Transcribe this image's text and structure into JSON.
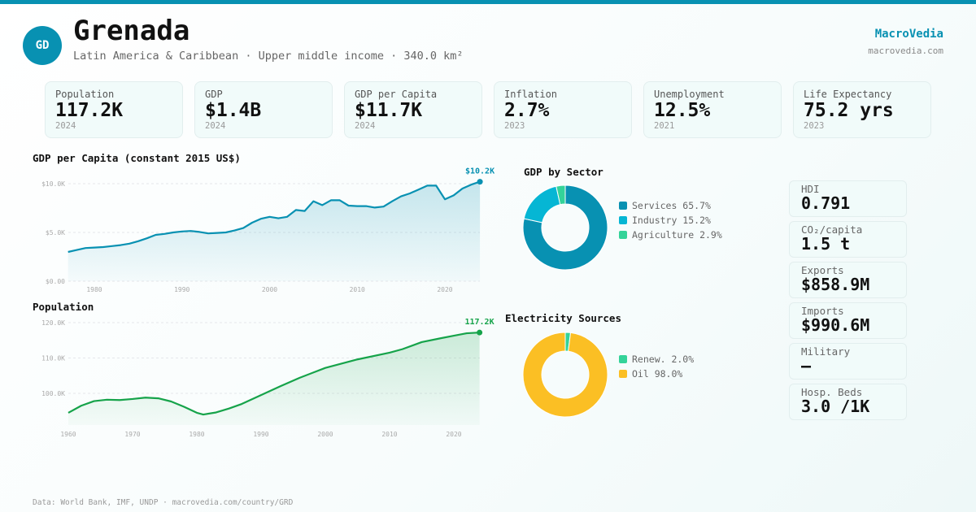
{
  "header": {
    "initials": "GD",
    "title": "Grenada",
    "subtitle": "Latin America & Caribbean · Upper middle income · 340.0 km²",
    "brand": "MacroVedia",
    "brand_url": "macrovedia.com"
  },
  "kpis": [
    {
      "label": "Population",
      "value": "117.2K",
      "year": "2024"
    },
    {
      "label": "GDP",
      "value": "$1.4B",
      "year": "2024"
    },
    {
      "label": "GDP per Capita",
      "value": "$11.7K",
      "year": "2024"
    },
    {
      "label": "Inflation",
      "value": "2.7%",
      "year": "2023"
    },
    {
      "label": "Unemployment",
      "value": "12.5%",
      "year": "2021"
    },
    {
      "label": "Life Expectancy",
      "value": "75.2 yrs",
      "year": "2023"
    }
  ],
  "side": [
    {
      "label": "HDI",
      "value": "0.791"
    },
    {
      "label": "CO₂/capita",
      "value": "1.5 t"
    },
    {
      "label": "Exports",
      "value": "$858.9M"
    },
    {
      "label": "Imports",
      "value": "$990.6M"
    },
    {
      "label": "Military",
      "value": "—"
    },
    {
      "label": "Hosp. Beds",
      "value": "3.0 /1K"
    }
  ],
  "footer": "Data: World Bank, IMF, UNDP · macrovedia.com/country/GRD",
  "chart_data": [
    {
      "type": "area",
      "title": "GDP per Capita (constant 2015 US$)",
      "color": "#0891b2",
      "last_label": "$10.2K",
      "yticks": [
        "$0.00",
        "$5.0K",
        "$10.0K"
      ],
      "ytick_values": [
        0,
        5,
        10
      ],
      "xticks": [
        "1980",
        "1990",
        "2000",
        "2010",
        "2020"
      ],
      "ylim": [
        0,
        10
      ],
      "unit": "thousand US$",
      "x": [
        1977,
        1978,
        1979,
        1980,
        1981,
        1982,
        1983,
        1984,
        1985,
        1986,
        1987,
        1988,
        1989,
        1990,
        1991,
        1992,
        1993,
        1994,
        1995,
        1996,
        1997,
        1998,
        1999,
        2000,
        2001,
        2002,
        2003,
        2004,
        2005,
        2006,
        2007,
        2008,
        2009,
        2010,
        2011,
        2012,
        2013,
        2014,
        2015,
        2016,
        2017,
        2018,
        2019,
        2020,
        2021,
        2022,
        2023,
        2024
      ],
      "y": [
        3.0,
        3.2,
        3.4,
        3.45,
        3.5,
        3.6,
        3.7,
        3.85,
        4.1,
        4.4,
        4.75,
        4.85,
        5.0,
        5.1,
        5.15,
        5.05,
        4.9,
        4.95,
        5.0,
        5.2,
        5.45,
        6.0,
        6.4,
        6.6,
        6.45,
        6.6,
        7.3,
        7.2,
        8.2,
        7.8,
        8.3,
        8.3,
        7.75,
        7.7,
        7.7,
        7.55,
        7.65,
        8.2,
        8.7,
        9.0,
        9.4,
        9.8,
        9.8,
        8.4,
        8.8,
        9.5,
        9.9,
        10.2
      ]
    },
    {
      "type": "area",
      "title": "Population",
      "color": "#16a34a",
      "last_label": "117.2K",
      "yticks": [
        "100.0K",
        "110.0K",
        "120.0K"
      ],
      "ytick_values": [
        100,
        110,
        120
      ],
      "xticks": [
        "1960",
        "1970",
        "1980",
        "1990",
        "2000",
        "2010",
        "2020"
      ],
      "unit": "thousand",
      "x": [
        1960,
        1962,
        1964,
        1966,
        1968,
        1970,
        1972,
        1974,
        1976,
        1978,
        1980,
        1981,
        1983,
        1985,
        1987,
        1990,
        1993,
        1996,
        2000,
        2005,
        2010,
        2012,
        2015,
        2018,
        2020,
        2022,
        2024
      ],
      "y": [
        94.5,
        96.5,
        97.8,
        98.2,
        98.1,
        98.4,
        98.8,
        98.6,
        97.7,
        96.2,
        94.5,
        94.0,
        94.6,
        95.7,
        97.0,
        99.5,
        102,
        104.4,
        107.2,
        109.6,
        111.5,
        112.5,
        114.5,
        115.6,
        116.3,
        117.0,
        117.2
      ]
    },
    {
      "type": "pie",
      "title": "GDP by Sector",
      "labels": [
        "Services 65.7%",
        "Industry 15.2%",
        "Agriculture 2.9%"
      ],
      "values": [
        65.7,
        15.2,
        2.9
      ],
      "colors": [
        "#0891b2",
        "#06b6d4",
        "#34d399"
      ]
    },
    {
      "type": "pie",
      "title": "Electricity Sources",
      "labels": [
        "Renew. 2.0%",
        "Oil 98.0%"
      ],
      "values": [
        2.0,
        98.0
      ],
      "colors": [
        "#34d399",
        "#fbbf24"
      ]
    }
  ]
}
